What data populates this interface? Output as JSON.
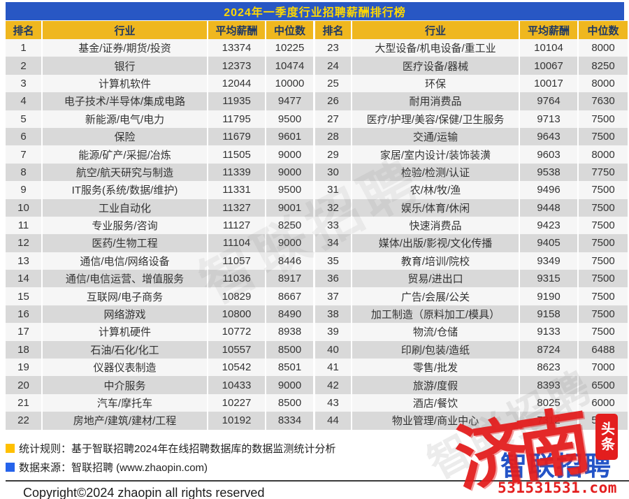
{
  "title": "2024年一季度行业招聘薪酬排行榜",
  "chart_data": {
    "type": "table",
    "title": "2024年一季度行业招聘薪酬排行榜",
    "columns": [
      "排名",
      "行业",
      "平均薪酬",
      "中位数"
    ],
    "layout": "two side-by-side halves, ranks 1-22 left, 23-44 right",
    "rows": [
      [
        1,
        "基金/证券/期货/投资",
        13374,
        10225
      ],
      [
        2,
        "银行",
        12373,
        10474
      ],
      [
        3,
        "计算机软件",
        12044,
        10000
      ],
      [
        4,
        "电子技术/半导体/集成电路",
        11935,
        9477
      ],
      [
        5,
        "新能源/电气/电力",
        11795,
        9500
      ],
      [
        6,
        "保险",
        11679,
        9601
      ],
      [
        7,
        "能源/矿产/采掘/冶炼",
        11505,
        9000
      ],
      [
        8,
        "航空/航天研究与制造",
        11339,
        9000
      ],
      [
        9,
        "IT服务(系统/数据/维护)",
        11331,
        9500
      ],
      [
        10,
        "工业自动化",
        11327,
        9001
      ],
      [
        11,
        "专业服务/咨询",
        11127,
        8250
      ],
      [
        12,
        "医药/生物工程",
        11104,
        9000
      ],
      [
        13,
        "通信/电信/网络设备",
        11057,
        8446
      ],
      [
        14,
        "通信/电信运营、增值服务",
        11036,
        8917
      ],
      [
        15,
        "互联网/电子商务",
        10829,
        8667
      ],
      [
        16,
        "网络游戏",
        10800,
        8490
      ],
      [
        17,
        "计算机硬件",
        10772,
        8938
      ],
      [
        18,
        "石油/石化/化工",
        10557,
        8500
      ],
      [
        19,
        "仪器仪表制造",
        10542,
        8501
      ],
      [
        20,
        "中介服务",
        10433,
        9000
      ],
      [
        21,
        "汽车/摩托车",
        10227,
        8500
      ],
      [
        22,
        "房地产/建筑/建材/工程",
        10192,
        8334
      ],
      [
        23,
        "大型设备/机电设备/重工业",
        10104,
        8000
      ],
      [
        24,
        "医疗设备/器械",
        10067,
        8250
      ],
      [
        25,
        "环保",
        10017,
        8000
      ],
      [
        26,
        "耐用消费品",
        9764,
        7630
      ],
      [
        27,
        "医疗/护理/美容/保健/卫生服务",
        9713,
        7500
      ],
      [
        28,
        "交通/运输",
        9643,
        7500
      ],
      [
        29,
        "家居/室内设计/装饰装潢",
        9603,
        8000
      ],
      [
        30,
        "检验/检测/认证",
        9538,
        7750
      ],
      [
        31,
        "农/林/牧/渔",
        9496,
        7500
      ],
      [
        32,
        "娱乐/体育/休闲",
        9448,
        7500
      ],
      [
        33,
        "快速消费品",
        9423,
        7500
      ],
      [
        34,
        "媒体/出版/影视/文化传播",
        9405,
        7500
      ],
      [
        35,
        "教育/培训/院校",
        9349,
        7500
      ],
      [
        36,
        "贸易/进出口",
        9315,
        7500
      ],
      [
        37,
        "广告/会展/公关",
        9190,
        7500
      ],
      [
        38,
        "加工制造（原料加工/模具）",
        9158,
        7500
      ],
      [
        39,
        "物流/仓储",
        9133,
        7500
      ],
      [
        40,
        "印刷/包装/造纸",
        8724,
        6488
      ],
      [
        41,
        "零售/批发",
        8623,
        7000
      ],
      [
        42,
        "旅游/度假",
        8393,
        6500
      ],
      [
        43,
        "酒店/餐饮",
        8025,
        6000
      ],
      [
        44,
        "物业管理/商业中心",
        7312,
        5818
      ]
    ]
  },
  "footnotes": [
    {
      "text": "统计规则：基于智联招聘2024年在线招聘数据库的数据监测统计分析"
    },
    {
      "text": "数据来源：智联招聘 (www.zhaopin.com)"
    }
  ],
  "copyright": "Copyright©2024 zhaopin all rights reserved",
  "watermarks": {
    "center_text": "智联招聘",
    "logo_text": "智联招聘",
    "stamp_text": "济南",
    "badge_text": "头条",
    "url_text": "531531531.com"
  },
  "colors": {
    "title_bar_bg": "#2857C4",
    "title_text": "#FFD800",
    "header_bg": "#EFB71F",
    "header_text": "#1F3864",
    "row_gray": "#D9D9D9",
    "stamp_red": "#E31E1E",
    "logo_blue": "#2454C7",
    "bullet_gold": "#FFC000",
    "bullet_blue": "#2563EB"
  }
}
